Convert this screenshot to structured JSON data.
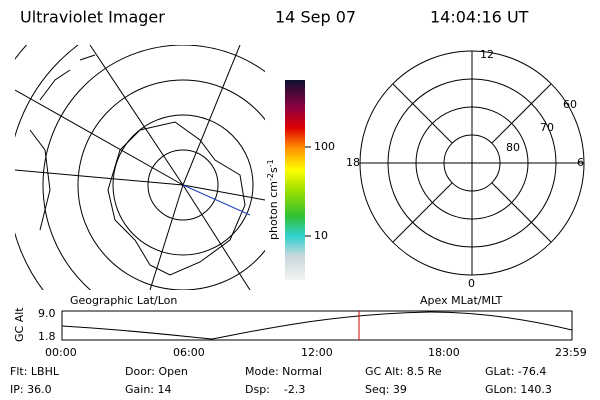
{
  "header": {
    "instrument": "Ultraviolet Imager",
    "date": "14 Sep 07",
    "time": "14:04:16 UT"
  },
  "colorbar": {
    "label": {
      "base": "photon cm",
      "exp1": "-2",
      "unit2": "s",
      "exp2": "-1"
    },
    "ticks": [
      "100",
      "10"
    ]
  },
  "polar": {
    "mlt": [
      "12",
      "18",
      "6",
      "0"
    ],
    "mlat": [
      "60",
      "70",
      "80"
    ]
  },
  "altitude": {
    "axis_label": "GC Alt",
    "ticks": [
      "9.0",
      "1.8"
    ],
    "left_title": "Geographic Lat/Lon",
    "right_title": "Apex MLat/MLT",
    "times": [
      "00:00",
      "06:00",
      "12:00",
      "18:00",
      "23:59"
    ]
  },
  "info": [
    [
      "Flt: LBHL",
      "Door: Open",
      "Mode: Normal",
      "GC Alt: 8.5 Re",
      "GLat: -76.4"
    ],
    [
      "IP: 36.0",
      "Gain: 14",
      "Dsp:    -2.3",
      "Seq: 39",
      "GLon: 140.3"
    ]
  ]
}
